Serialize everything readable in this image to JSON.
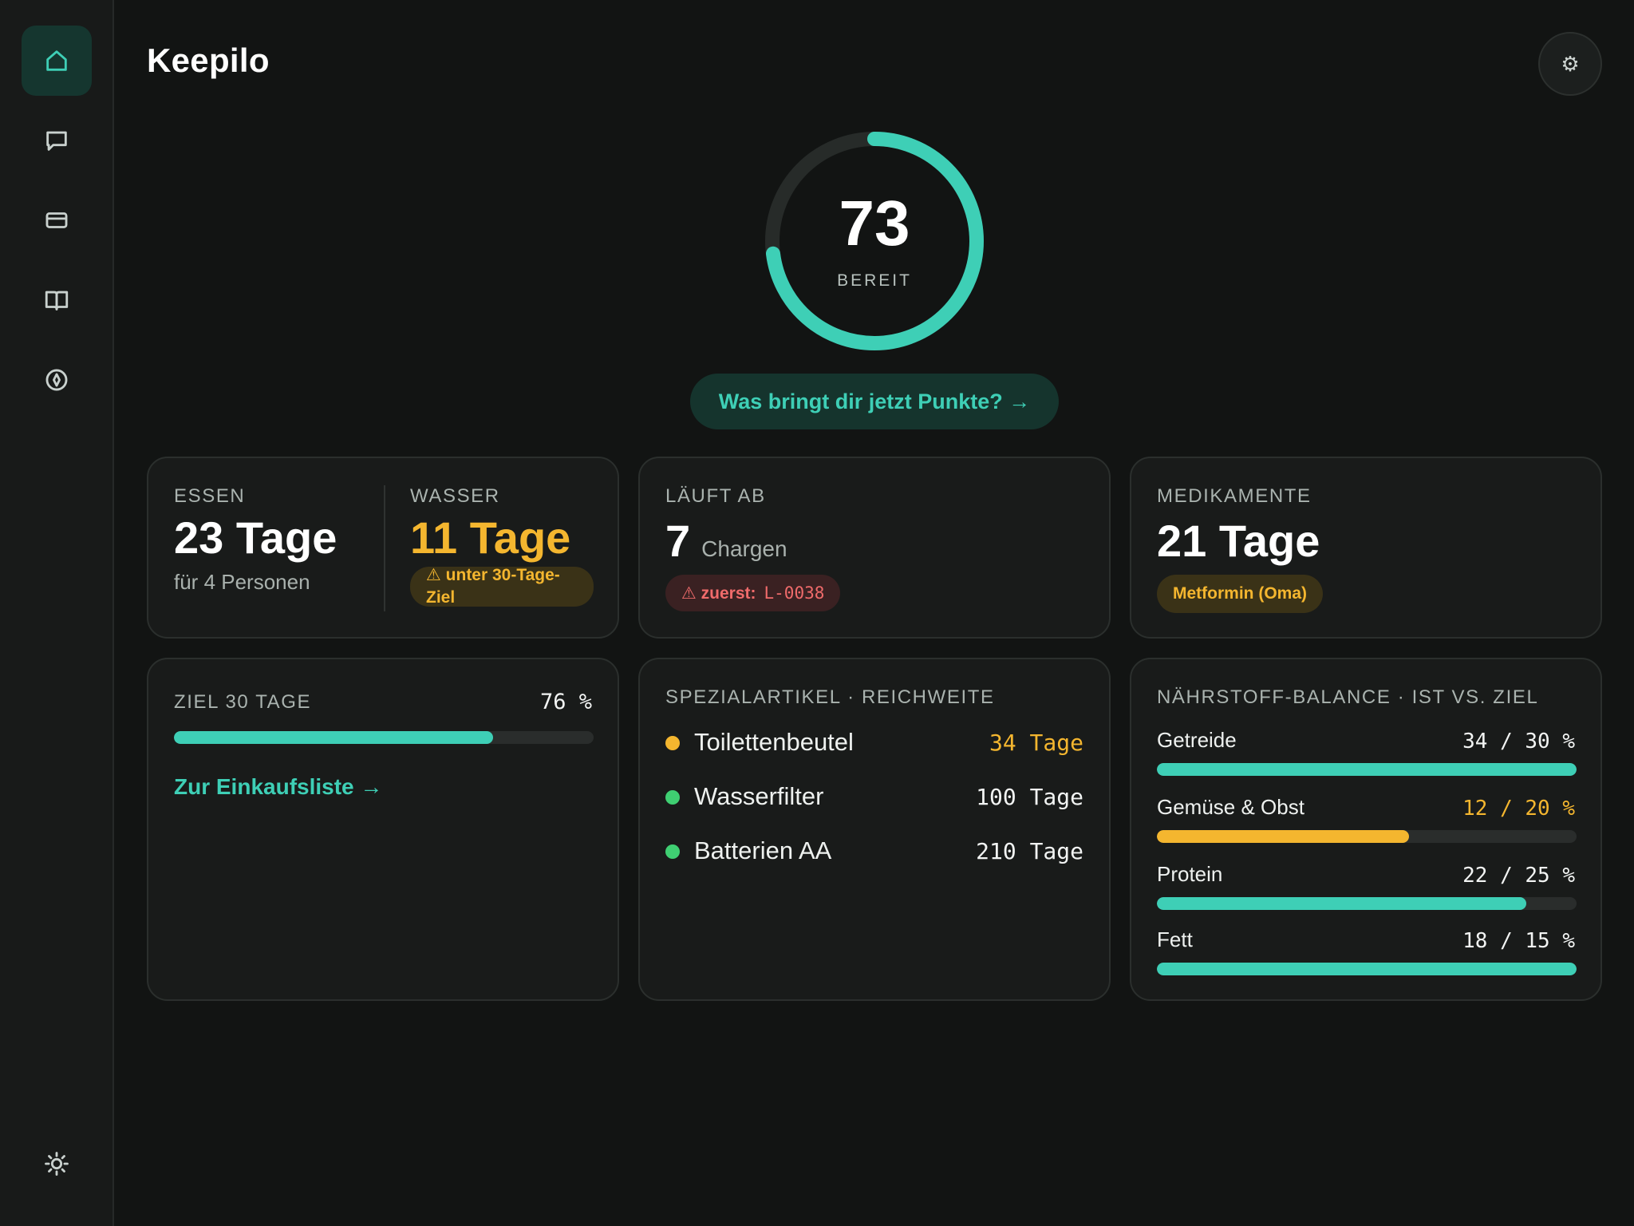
{
  "app": {
    "title": "Keepilo"
  },
  "sidebar": {
    "items": [
      {
        "icon": "home-icon",
        "active": true
      },
      {
        "icon": "chat-icon",
        "active": false
      },
      {
        "icon": "card-icon",
        "active": false
      },
      {
        "icon": "book-icon",
        "active": false
      },
      {
        "icon": "compass-icon",
        "active": false
      }
    ],
    "bottom_icon": "sun-icon"
  },
  "header": {
    "settings_icon": "⚙"
  },
  "score": {
    "value": "73",
    "label": "BEREIT",
    "progress": 0.73,
    "cta": "Was bringt dir jetzt Punkte? →"
  },
  "colors": {
    "accent": "#3ecfb6",
    "warning": "#f4b62f",
    "danger": "#f06b6b",
    "ok": "#3fcf72"
  },
  "cards": {
    "essen": {
      "label": "ESSEN",
      "value": "23 Tage",
      "sub": "für 4 Personen"
    },
    "wasser": {
      "label": "WASSER",
      "value": "11 Tage",
      "badge": "⚠ unter 30-Tage-Ziel"
    },
    "expiry": {
      "label": "LÄUFT AB",
      "count": "7",
      "unit": "Chargen",
      "badge_prefix": "⚠ zuerst:",
      "badge_code": "L-0038"
    },
    "meds": {
      "label": "MEDIKAMENTE",
      "value": "21 Tage",
      "badge": "Metformin (Oma)"
    },
    "goal": {
      "label": "ZIEL 30 TAGE",
      "percent_text": "76 %",
      "progress": 0.76,
      "link": "Zur Einkaufsliste →"
    },
    "special": {
      "label": "SPEZIALARTIKEL · REICHWEITE",
      "items": [
        {
          "name": "Toilettenbeutel",
          "value": "34 Tage",
          "status": "warning"
        },
        {
          "name": "Wasserfilter",
          "value": "100 Tage",
          "status": "ok"
        },
        {
          "name": "Batterien AA",
          "value": "210 Tage",
          "status": "ok"
        }
      ]
    },
    "nutrients": {
      "label": "NÄHRSTOFF-BALANCE · IST VS. ZIEL",
      "items": [
        {
          "name": "Getreide",
          "value": "34 / 30 %",
          "progress": 1.0,
          "status": "ok"
        },
        {
          "name": "Gemüse & Obst",
          "value": "12 / 20 %",
          "progress": 0.6,
          "status": "warning"
        },
        {
          "name": "Protein",
          "value": "22 / 25 %",
          "progress": 0.88,
          "status": "ok"
        },
        {
          "name": "Fett",
          "value": "18 / 15 %",
          "progress": 1.0,
          "status": "ok"
        }
      ]
    }
  }
}
